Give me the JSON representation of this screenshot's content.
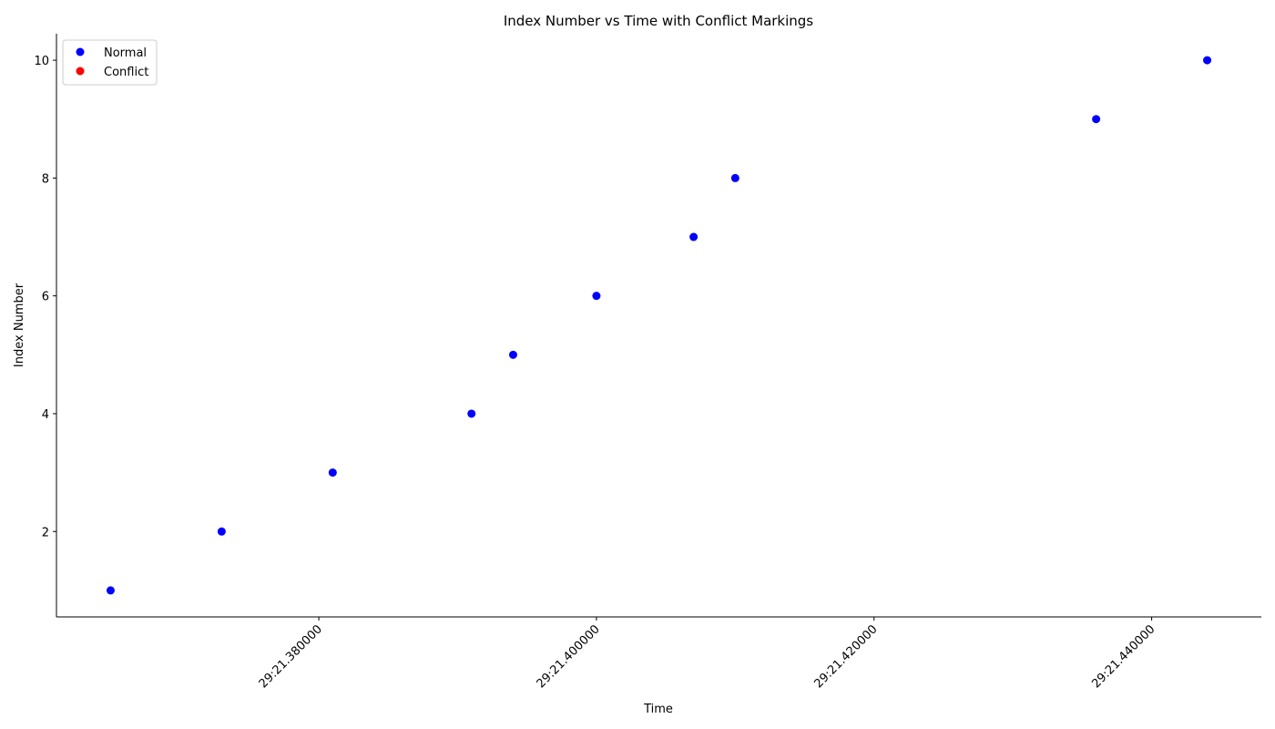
{
  "chart_data": {
    "type": "scatter",
    "title": "Index Number vs Time with Conflict Markings",
    "x_label": "Time",
    "y_label": "Index Number",
    "series": [
      {
        "name": "Normal",
        "color": "#0000ff",
        "x": [
          21.365,
          21.373,
          21.381,
          21.391,
          21.394,
          21.4,
          21.407,
          21.41,
          21.436,
          21.444
        ],
        "values": [
          1,
          2,
          3,
          4,
          5,
          6,
          7,
          8,
          9,
          10
        ]
      },
      {
        "name": "Conflict",
        "color": "#ff0000",
        "x": [],
        "values": []
      }
    ],
    "xlim": [
      21.3611,
      21.4479
    ],
    "xticks": [
      {
        "value": 21.38,
        "label": "29:21.380000"
      },
      {
        "value": 21.4,
        "label": "29:21.400000"
      },
      {
        "value": 21.42,
        "label": "29:21.420000"
      },
      {
        "value": 21.44,
        "label": "29:21.440000"
      }
    ],
    "ylim": [
      0.55,
      10.45
    ],
    "yticks": [
      2,
      4,
      6,
      8,
      10
    ],
    "legend": "upper left",
    "grid": false
  }
}
